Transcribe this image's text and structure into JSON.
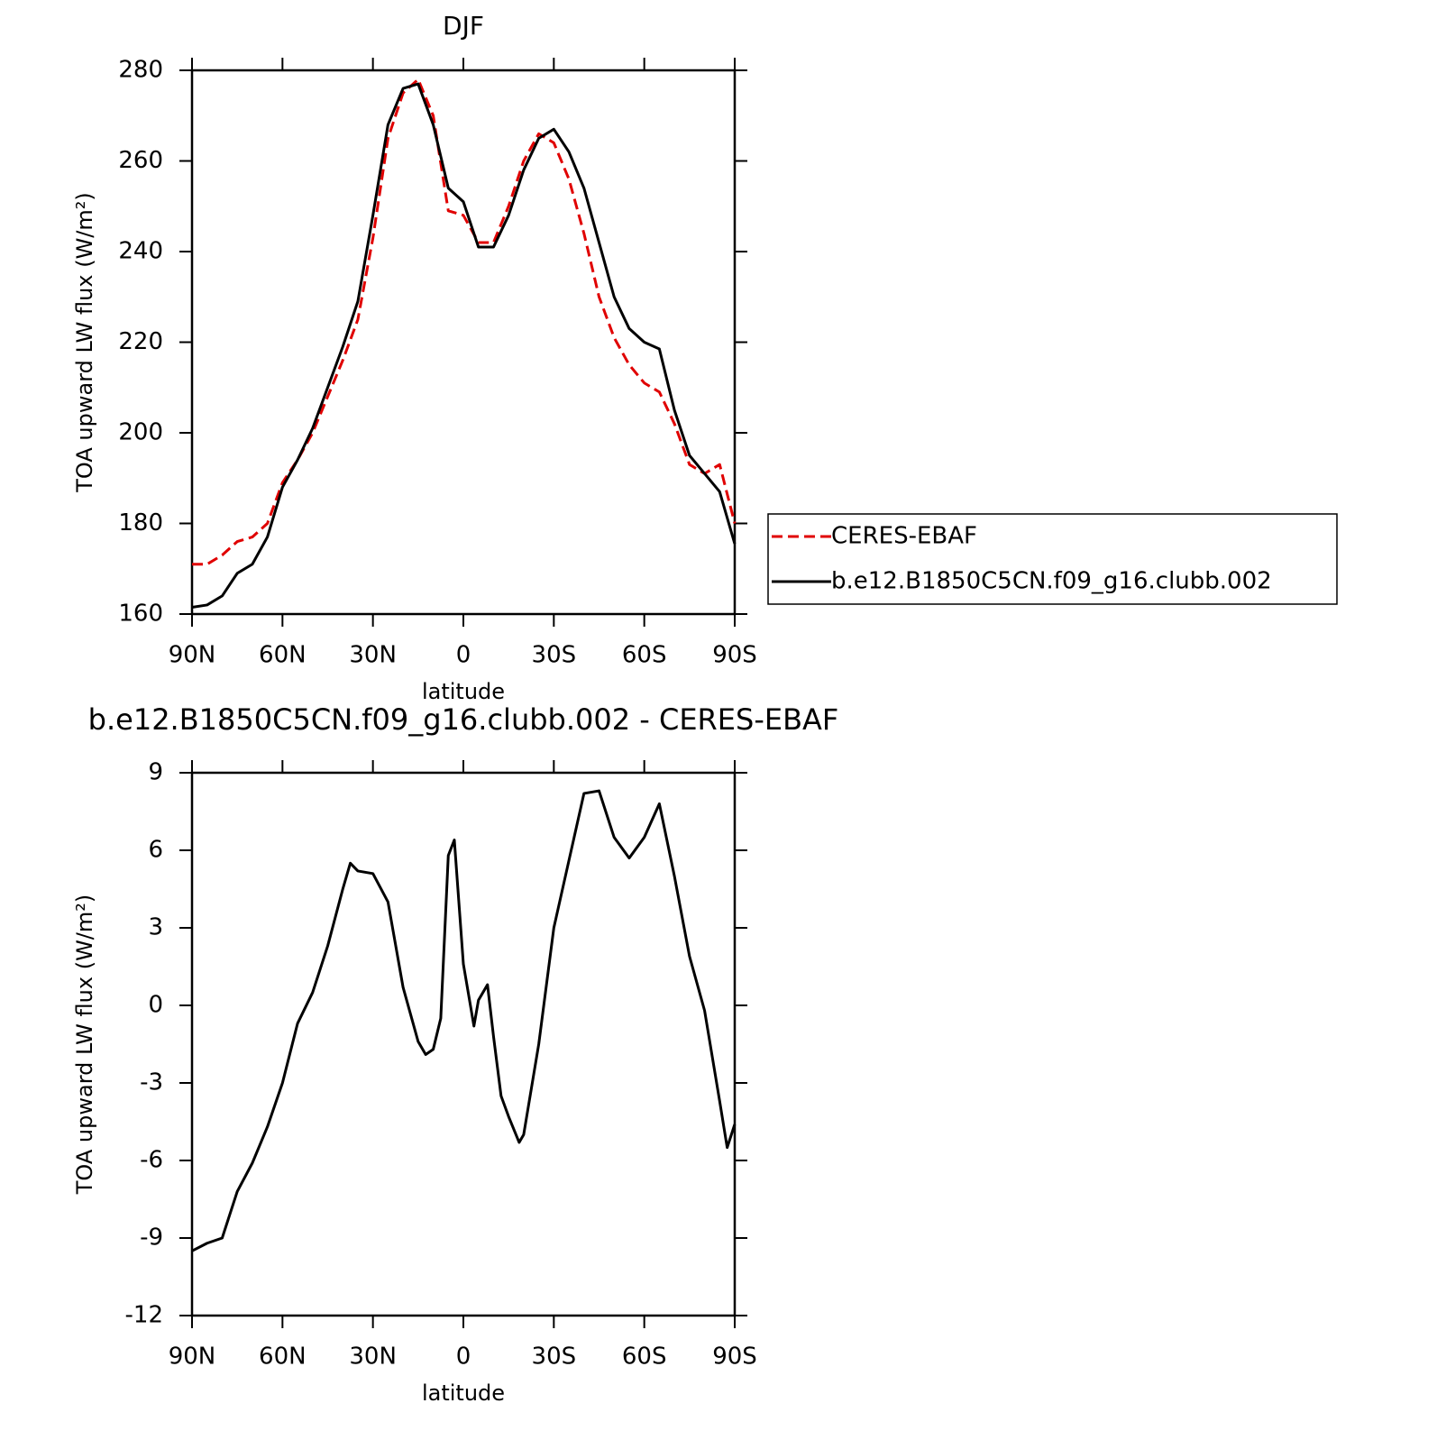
{
  "chart_data": [
    {
      "type": "line",
      "title": "DJF",
      "xlabel": "latitude",
      "ylabel": "TOA upward LW flux (W/m²)",
      "x": [
        90,
        85,
        80,
        75,
        70,
        65,
        60,
        55,
        50,
        45,
        40,
        35,
        30,
        25,
        20,
        15,
        10,
        5,
        0,
        -5,
        -10,
        -15,
        -20,
        -25,
        -30,
        -35,
        -40,
        -45,
        -50,
        -55,
        -60,
        -65,
        -70,
        -75,
        -80,
        -85,
        -90
      ],
      "series": [
        {
          "name": "CERES-EBAF",
          "color": "#e00000",
          "dashed": true,
          "values": [
            171,
            171,
            173,
            176,
            177,
            180,
            189,
            194,
            200,
            208,
            216,
            225,
            243,
            265,
            275,
            278,
            270,
            249,
            248,
            242,
            242,
            250,
            260,
            266,
            264,
            256,
            244,
            230,
            221,
            215,
            211,
            209,
            202,
            193,
            191,
            193,
            180
          ]
        },
        {
          "name": "b.e12.B1850C5CN.f09_g16.clubb.002",
          "color": "#000000",
          "dashed": false,
          "values": [
            161.5,
            162,
            164,
            169,
            171,
            177,
            188,
            194,
            201,
            210,
            219,
            229,
            248,
            268,
            276,
            277,
            268,
            254,
            251,
            241,
            241,
            248,
            258,
            265,
            267,
            262,
            254,
            242,
            230,
            223,
            220,
            218.5,
            205,
            195,
            191,
            187,
            175.5
          ]
        }
      ],
      "xlim": [
        90,
        -90
      ],
      "xticks": [
        {
          "value": 90,
          "label": "90N"
        },
        {
          "value": 60,
          "label": "60N"
        },
        {
          "value": 30,
          "label": "30N"
        },
        0,
        {
          "value": -30,
          "label": "30S"
        },
        {
          "value": -60,
          "label": "60S"
        },
        {
          "value": -90,
          "label": "90S"
        }
      ],
      "ylim": [
        160,
        280
      ],
      "yticks": [
        160,
        180,
        200,
        220,
        240,
        260,
        280
      ],
      "legend_position": "right"
    },
    {
      "type": "line",
      "title": "b.e12.B1850C5CN.f09_g16.clubb.002 - CERES-EBAF",
      "xlabel": "latitude",
      "ylabel": "TOA upward LW flux (W/m²)",
      "x": [
        90,
        85,
        80,
        75,
        70,
        65,
        60,
        55,
        50,
        45,
        40,
        37.5,
        35,
        30,
        25,
        20,
        15,
        12.5,
        10,
        7.5,
        5,
        3,
        0,
        -3.5,
        -5,
        -8,
        -10,
        -12.5,
        -15,
        -18.5,
        -20,
        -25,
        -30,
        -35,
        -40,
        -45,
        -50,
        -55,
        -60,
        -65,
        -70,
        -75,
        -80,
        -85,
        -87.5,
        -90
      ],
      "values": [
        -9.5,
        -9.2,
        -9.0,
        -7.2,
        -6.1,
        -4.7,
        -3.0,
        -0.7,
        0.5,
        2.3,
        4.5,
        5.5,
        5.2,
        5.1,
        4.0,
        0.7,
        -1.4,
        -1.9,
        -1.7,
        -0.5,
        5.8,
        6.4,
        1.6,
        -0.8,
        0.2,
        0.8,
        -1.2,
        -3.5,
        -4.3,
        -5.3,
        -5.0,
        -1.5,
        3.0,
        5.6,
        8.2,
        8.3,
        6.5,
        5.7,
        6.5,
        7.8,
        5.0,
        1.9,
        -0.2,
        -3.7,
        -5.5,
        -4.6
      ],
      "color": "#000000",
      "xlim": [
        90,
        -90
      ],
      "xticks": [
        {
          "value": 90,
          "label": "90N"
        },
        {
          "value": 60,
          "label": "60N"
        },
        {
          "value": 30,
          "label": "30N"
        },
        0,
        {
          "value": -30,
          "label": "30S"
        },
        {
          "value": -60,
          "label": "60S"
        },
        {
          "value": -90,
          "label": "90S"
        }
      ],
      "ylim": [
        -12,
        9
      ],
      "yticks": [
        -12,
        -9,
        -6,
        -3,
        0,
        3,
        6,
        9
      ]
    }
  ]
}
